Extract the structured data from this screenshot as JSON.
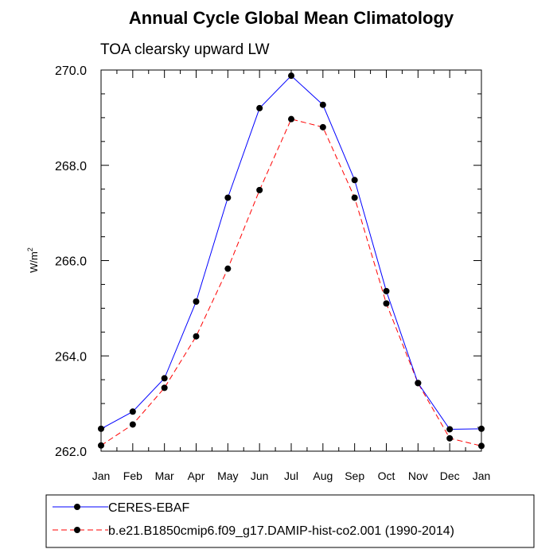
{
  "chart_data": {
    "type": "line",
    "title": "Annual Cycle Global Mean Climatology",
    "subtitle": "TOA clearsky upward LW",
    "xlabel": "",
    "ylabel": "W/m",
    "ylabel_superscript": "2",
    "categories": [
      "Jan",
      "Feb",
      "Mar",
      "Apr",
      "May",
      "Jun",
      "Jul",
      "Aug",
      "Sep",
      "Oct",
      "Nov",
      "Dec",
      "Jan"
    ],
    "ylim": [
      262.0,
      270.0
    ],
    "yticks": [
      "262.0",
      "264.0",
      "266.0",
      "268.0",
      "270.0"
    ],
    "grid": false,
    "legend_position": "bottom",
    "series": [
      {
        "name": "CERES-EBAF",
        "color": "#0000ff",
        "line_style": "solid",
        "values": [
          262.47,
          262.83,
          263.53,
          265.14,
          267.32,
          269.2,
          269.88,
          269.27,
          267.69,
          265.36,
          263.43,
          262.46,
          262.47
        ]
      },
      {
        "name": "b.e21.B1850cmip6.f09_g17.DAMIP-hist-co2.001 (1990-2014)",
        "color": "#ff0000",
        "line_style": "dashed",
        "values": [
          262.12,
          262.56,
          263.33,
          264.41,
          265.83,
          267.48,
          268.97,
          268.8,
          267.32,
          265.1,
          263.43,
          262.27,
          262.11
        ]
      }
    ]
  }
}
